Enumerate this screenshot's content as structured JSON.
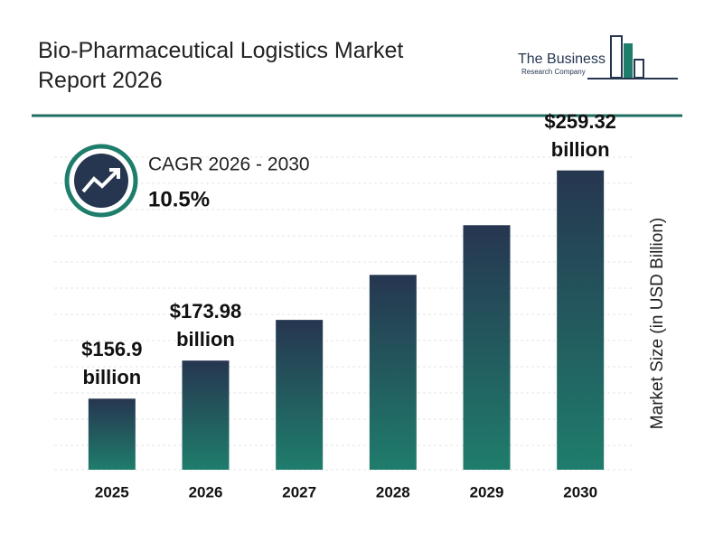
{
  "header": {
    "title": "Bio-Pharmaceutical Logistics Market Report 2026",
    "logo_line1": "The Business",
    "logo_line2": "Research Company"
  },
  "cagr": {
    "label": "CAGR 2026 - 2030",
    "value": "10.5%"
  },
  "chart_data": {
    "type": "bar",
    "y_label": "Market Size (in USD Billion)",
    "categories": [
      "2025",
      "2026",
      "2027",
      "2028",
      "2029",
      "2030"
    ],
    "values": [
      156.9,
      173.98,
      192.25,
      212.44,
      234.75,
      259.32
    ],
    "value_labels": [
      "$156.9 billion",
      "$173.98 billion",
      null,
      null,
      null,
      "$259.32 billion"
    ],
    "color": [
      "#263650",
      "#1f7d6c"
    ],
    "ylim": [
      125,
      275
    ]
  }
}
